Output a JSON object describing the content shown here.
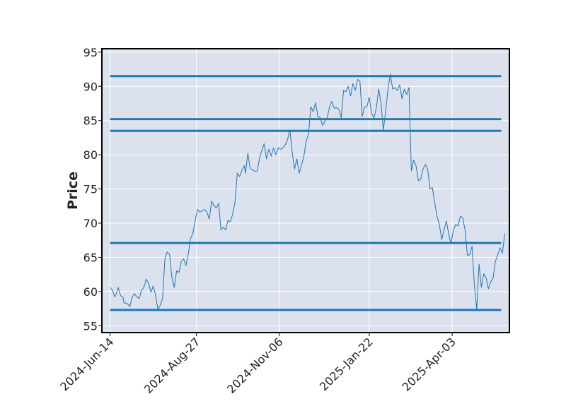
{
  "chart_data": {
    "type": "line",
    "title": "",
    "xlabel": "",
    "ylabel": "Price",
    "ylim": [
      54,
      95.5
    ],
    "xlim": [
      "2024-06-07",
      "2025-05-22"
    ],
    "grid": true,
    "yticks": [
      55,
      60,
      65,
      70,
      75,
      80,
      85,
      90,
      95
    ],
    "xticks": [
      "2024-Jun-14",
      "2024-Aug-27",
      "2024-Nov-06",
      "2025-Jan-22",
      "2025-Apr-03"
    ],
    "xtick_dates": [
      "2024-06-14",
      "2024-08-27",
      "2024-11-06",
      "2025-01-22",
      "2025-04-03"
    ],
    "colors": {
      "background": "#dce1ee",
      "grid": "#ffffff",
      "line": "#1f77b4",
      "hline": "#1f77b4"
    },
    "hlines": [
      {
        "y": 91.5,
        "x_start": "2024-06-14",
        "x_end": "2025-05-15"
      },
      {
        "y": 85.2,
        "x_start": "2024-06-14",
        "x_end": "2025-05-15"
      },
      {
        "y": 83.5,
        "x_start": "2024-06-14",
        "x_end": "2025-05-15"
      },
      {
        "y": 67.1,
        "x_start": "2024-06-14",
        "x_end": "2025-05-15"
      },
      {
        "y": 57.3,
        "x_start": "2024-06-14",
        "x_end": "2025-05-15"
      }
    ],
    "series": [
      {
        "points": [
          [
            "2024-06-14",
            60.6
          ],
          [
            "2024-06-16",
            60.2
          ],
          [
            "2024-06-18",
            59.2
          ],
          [
            "2024-06-20",
            60.0
          ],
          [
            "2024-06-21",
            60.6
          ],
          [
            "2024-06-23",
            59.4
          ],
          [
            "2024-06-25",
            59.2
          ],
          [
            "2024-06-26",
            58.3
          ],
          [
            "2024-06-28",
            58.3
          ],
          [
            "2024-06-30",
            58.0
          ],
          [
            "2024-07-01",
            57.8
          ],
          [
            "2024-07-03",
            59.2
          ],
          [
            "2024-07-05",
            59.7
          ],
          [
            "2024-07-07",
            59.2
          ],
          [
            "2024-07-09",
            59.0
          ],
          [
            "2024-07-11",
            60.2
          ],
          [
            "2024-07-13",
            60.6
          ],
          [
            "2024-07-15",
            61.8
          ],
          [
            "2024-07-17",
            61.2
          ],
          [
            "2024-07-19",
            59.9
          ],
          [
            "2024-07-21",
            60.8
          ],
          [
            "2024-07-23",
            59.5
          ],
          [
            "2024-07-25",
            57.4
          ],
          [
            "2024-07-27",
            58.0
          ],
          [
            "2024-07-29",
            59.0
          ],
          [
            "2024-07-31",
            64.8
          ],
          [
            "2024-08-02",
            65.8
          ],
          [
            "2024-08-04",
            65.4
          ],
          [
            "2024-08-06",
            62.0
          ],
          [
            "2024-08-08",
            60.6
          ],
          [
            "2024-08-10",
            63.0
          ],
          [
            "2024-08-12",
            62.8
          ],
          [
            "2024-08-14",
            64.4
          ],
          [
            "2024-08-16",
            64.8
          ],
          [
            "2024-08-18",
            63.8
          ],
          [
            "2024-08-20",
            65.5
          ],
          [
            "2024-08-22",
            67.8
          ],
          [
            "2024-08-24",
            68.5
          ],
          [
            "2024-08-26",
            70.5
          ],
          [
            "2024-08-28",
            72.0
          ],
          [
            "2024-08-30",
            71.6
          ],
          [
            "2024-09-01",
            71.8
          ],
          [
            "2024-09-03",
            72.0
          ],
          [
            "2024-09-05",
            71.6
          ],
          [
            "2024-09-07",
            70.6
          ],
          [
            "2024-09-09",
            73.2
          ],
          [
            "2024-09-11",
            72.6
          ],
          [
            "2024-09-13",
            72.2
          ],
          [
            "2024-09-15",
            72.9
          ],
          [
            "2024-09-17",
            69.0
          ],
          [
            "2024-09-19",
            69.4
          ],
          [
            "2024-09-21",
            69.0
          ],
          [
            "2024-09-23",
            70.4
          ],
          [
            "2024-09-25",
            70.2
          ],
          [
            "2024-09-27",
            71.3
          ],
          [
            "2024-09-29",
            73.0
          ],
          [
            "2024-10-01",
            77.3
          ],
          [
            "2024-10-03",
            76.8
          ],
          [
            "2024-10-05",
            77.8
          ],
          [
            "2024-10-07",
            78.4
          ],
          [
            "2024-10-08",
            77.3
          ],
          [
            "2024-10-10",
            80.2
          ],
          [
            "2024-10-12",
            78.0
          ],
          [
            "2024-10-14",
            77.8
          ],
          [
            "2024-10-16",
            77.6
          ],
          [
            "2024-10-18",
            77.6
          ],
          [
            "2024-10-20",
            79.5
          ],
          [
            "2024-10-22",
            80.6
          ],
          [
            "2024-10-24",
            81.6
          ],
          [
            "2024-10-26",
            79.4
          ],
          [
            "2024-10-28",
            80.8
          ],
          [
            "2024-10-30",
            79.8
          ],
          [
            "2024-11-01",
            81.0
          ],
          [
            "2024-11-03",
            80.0
          ],
          [
            "2024-11-05",
            81.0
          ],
          [
            "2024-11-07",
            80.8
          ],
          [
            "2024-11-09",
            81.0
          ],
          [
            "2024-11-11",
            81.4
          ],
          [
            "2024-11-13",
            82.2
          ],
          [
            "2024-11-15",
            83.6
          ],
          [
            "2024-11-17",
            80.4
          ],
          [
            "2024-11-19",
            77.9
          ],
          [
            "2024-11-21",
            79.4
          ],
          [
            "2024-11-23",
            77.3
          ],
          [
            "2024-11-25",
            78.5
          ],
          [
            "2024-11-27",
            79.8
          ],
          [
            "2024-11-29",
            82.0
          ],
          [
            "2024-12-01",
            83.0
          ],
          [
            "2024-12-03",
            87.0
          ],
          [
            "2024-12-05",
            86.3
          ],
          [
            "2024-12-07",
            87.6
          ],
          [
            "2024-12-09",
            85.6
          ],
          [
            "2024-12-11",
            85.4
          ],
          [
            "2024-12-13",
            84.3
          ],
          [
            "2024-12-15",
            84.9
          ],
          [
            "2024-12-17",
            85.4
          ],
          [
            "2024-12-19",
            87.0
          ],
          [
            "2024-12-21",
            87.8
          ],
          [
            "2024-12-23",
            86.8
          ],
          [
            "2024-12-25",
            86.9
          ],
          [
            "2024-12-27",
            86.6
          ],
          [
            "2024-12-29",
            85.4
          ],
          [
            "2024-12-31",
            89.4
          ],
          [
            "2025-01-02",
            89.2
          ],
          [
            "2025-01-04",
            90.0
          ],
          [
            "2025-01-06",
            88.6
          ],
          [
            "2025-01-08",
            90.4
          ],
          [
            "2025-01-10",
            89.4
          ],
          [
            "2025-01-12",
            91.0
          ],
          [
            "2025-01-14",
            90.8
          ],
          [
            "2025-01-16",
            85.6
          ],
          [
            "2025-01-18",
            87.0
          ],
          [
            "2025-01-20",
            87.0
          ],
          [
            "2025-01-22",
            88.4
          ],
          [
            "2025-01-24",
            86.0
          ],
          [
            "2025-01-26",
            85.4
          ],
          [
            "2025-01-28",
            86.8
          ],
          [
            "2025-01-30",
            89.6
          ],
          [
            "2025-02-01",
            87.6
          ],
          [
            "2025-02-03",
            83.6
          ],
          [
            "2025-02-05",
            86.4
          ],
          [
            "2025-02-07",
            89.6
          ],
          [
            "2025-02-09",
            91.8
          ],
          [
            "2025-02-11",
            89.6
          ],
          [
            "2025-02-13",
            89.8
          ],
          [
            "2025-02-15",
            89.4
          ],
          [
            "2025-02-17",
            90.2
          ],
          [
            "2025-02-19",
            88.2
          ],
          [
            "2025-02-21",
            89.6
          ],
          [
            "2025-02-23",
            88.8
          ],
          [
            "2025-02-25",
            89.8
          ],
          [
            "2025-02-27",
            77.6
          ],
          [
            "2025-03-01",
            79.2
          ],
          [
            "2025-03-03",
            78.4
          ],
          [
            "2025-03-05",
            76.2
          ],
          [
            "2025-03-07",
            76.4
          ],
          [
            "2025-03-09",
            77.9
          ],
          [
            "2025-03-11",
            78.6
          ],
          [
            "2025-03-13",
            77.9
          ],
          [
            "2025-03-15",
            75.0
          ],
          [
            "2025-03-17",
            75.2
          ],
          [
            "2025-03-19",
            73.0
          ],
          [
            "2025-03-21",
            71.0
          ],
          [
            "2025-03-23",
            69.8
          ],
          [
            "2025-03-25",
            67.6
          ],
          [
            "2025-03-27",
            69.0
          ],
          [
            "2025-03-29",
            70.3
          ],
          [
            "2025-03-31",
            68.4
          ],
          [
            "2025-04-02",
            67.0
          ],
          [
            "2025-04-04",
            69.0
          ],
          [
            "2025-04-06",
            69.8
          ],
          [
            "2025-04-08",
            69.6
          ],
          [
            "2025-04-10",
            71.0
          ],
          [
            "2025-04-12",
            70.8
          ],
          [
            "2025-04-14",
            69.0
          ],
          [
            "2025-04-16",
            65.3
          ],
          [
            "2025-04-18",
            65.4
          ],
          [
            "2025-04-20",
            66.6
          ],
          [
            "2025-04-22",
            61.0
          ],
          [
            "2025-04-24",
            57.4
          ],
          [
            "2025-04-26",
            64.0
          ],
          [
            "2025-04-28",
            60.6
          ],
          [
            "2025-04-30",
            62.6
          ],
          [
            "2025-05-02",
            62.0
          ],
          [
            "2025-05-04",
            60.4
          ],
          [
            "2025-05-06",
            61.4
          ],
          [
            "2025-05-08",
            62.0
          ],
          [
            "2025-05-10",
            64.4
          ],
          [
            "2025-05-12",
            65.4
          ],
          [
            "2025-05-14",
            66.4
          ],
          [
            "2025-05-16",
            65.6
          ],
          [
            "2025-05-18",
            68.5
          ]
        ]
      }
    ]
  }
}
